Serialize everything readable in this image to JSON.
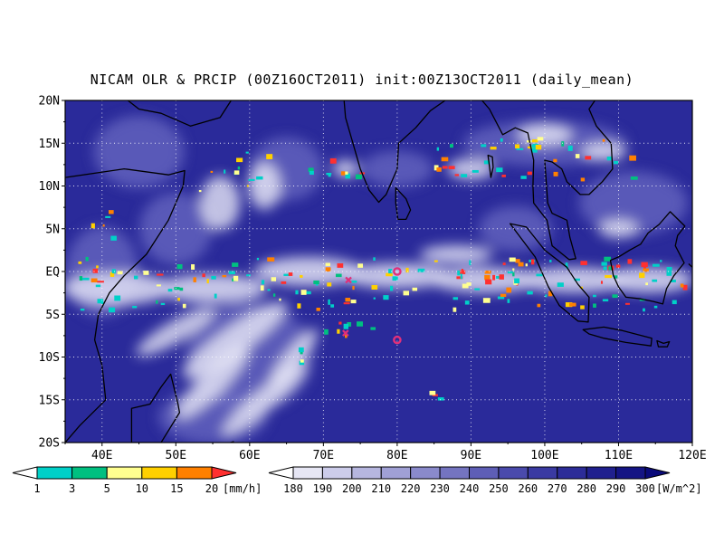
{
  "title": "NICAM OLR & PRCIP (00Z16OCT2011) init:00Z13OCT2011 (daily_mean)",
  "axes": {
    "lat_ticks": [
      "20N",
      "15N",
      "10N",
      "5N",
      "EQ",
      "5S",
      "10S",
      "15S",
      "20S"
    ],
    "lon_ticks": [
      "40E",
      "50E",
      "60E",
      "70E",
      "80E",
      "90E",
      "100E",
      "110E",
      "120E"
    ]
  },
  "precip_colorbar": {
    "unit": "[mm/h]",
    "labels": [
      "1",
      "3",
      "5",
      "10",
      "15",
      "20"
    ],
    "colors": [
      "#ffffff",
      "#00d0c8",
      "#00c080",
      "#ffff90",
      "#ffd000",
      "#ff8000",
      "#ff3030"
    ]
  },
  "olr_colorbar": {
    "unit": "[W/m^2]",
    "labels": [
      "180",
      "190",
      "200",
      "210",
      "220",
      "230",
      "240",
      "250",
      "260",
      "270",
      "280",
      "290",
      "300"
    ],
    "colors": [
      "#ffffff",
      "#e6e6f4",
      "#ccccea",
      "#b6b6df",
      "#a0a0d5",
      "#8a8acb",
      "#7474c0",
      "#5e5eb6",
      "#4a4aac",
      "#3a3aa2",
      "#2c2c98",
      "#20208e",
      "#141484",
      "#0a0a7a"
    ]
  },
  "markers": [
    {
      "symbol": "o",
      "lon": 80.0,
      "lat": 0.0
    },
    {
      "symbol": "x",
      "lon": 73.4,
      "lat": -1.0
    },
    {
      "symbol": "x",
      "lon": 73.0,
      "lat": -7.2
    },
    {
      "symbol": "o",
      "lon": 80.0,
      "lat": -8.0
    }
  ],
  "map": {
    "lon_range": [
      35,
      120
    ],
    "lat_range": [
      -20,
      20
    ],
    "ocean_color": "#2a2a9a",
    "cloud_color": "#ffffff",
    "marker_color": "#e0307a",
    "coast_color": "#000000"
  }
}
